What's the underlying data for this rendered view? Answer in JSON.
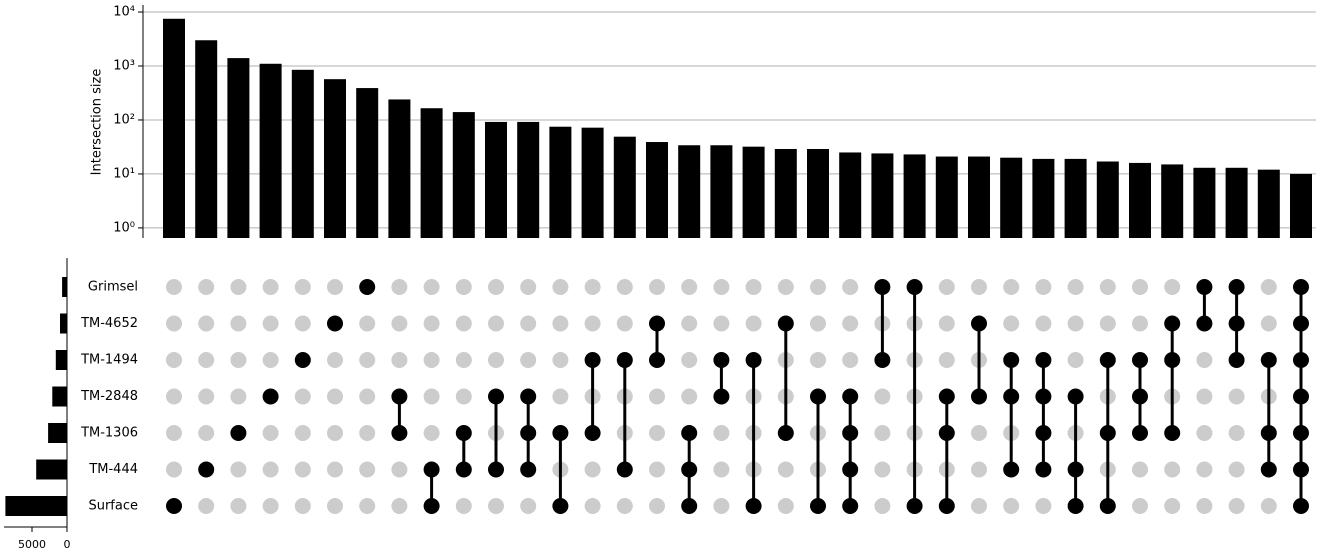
{
  "chart_data": {
    "type": "upset",
    "y_label": "Intersection size",
    "y_log": true,
    "ylim": [
      0.65,
      13500
    ],
    "yticks": [
      {
        "value": 1,
        "label": "10⁰"
      },
      {
        "value": 10,
        "label": "10¹"
      },
      {
        "value": 100,
        "label": "10²"
      },
      {
        "value": 1000,
        "label": "10³"
      },
      {
        "value": 10000,
        "label": "10⁴"
      }
    ],
    "grid": true,
    "color": "#000000",
    "sets": [
      "Grimsel",
      "TM-4652",
      "TM-1494",
      "TM-2848",
      "TM-1306",
      "TM-444",
      "Surface"
    ],
    "set_sizes": [
      700,
      1000,
      1600,
      2100,
      2700,
      4400,
      8800
    ],
    "set_size_xlim": [
      0,
      9000
    ],
    "set_size_xticks": [
      5000,
      0
    ],
    "values": [
      7500,
      3000,
      1400,
      1100,
      850,
      570,
      390,
      240,
      165,
      140,
      92,
      92,
      75,
      72,
      49,
      39,
      34,
      34,
      32,
      29,
      29,
      25,
      24,
      23,
      21,
      21,
      20,
      19,
      19,
      17,
      16,
      15,
      13,
      13,
      12,
      10
    ],
    "intersections": [
      [
        6
      ],
      [
        5
      ],
      [
        4
      ],
      [
        3
      ],
      [
        2
      ],
      [
        1
      ],
      [
        0
      ],
      [
        3,
        4
      ],
      [
        5,
        6
      ],
      [
        4,
        5
      ],
      [
        3,
        5
      ],
      [
        3,
        4,
        5
      ],
      [
        4,
        6
      ],
      [
        2,
        4
      ],
      [
        2,
        5
      ],
      [
        1,
        2
      ],
      [
        4,
        5,
        6
      ],
      [
        2,
        3
      ],
      [
        2,
        6
      ],
      [
        1,
        4
      ],
      [
        3,
        6
      ],
      [
        3,
        4,
        5,
        6
      ],
      [
        0,
        2
      ],
      [
        0,
        6
      ],
      [
        3,
        4,
        6
      ],
      [
        1,
        3
      ],
      [
        2,
        3,
        5
      ],
      [
        2,
        3,
        4,
        5
      ],
      [
        3,
        5,
        6
      ],
      [
        2,
        4,
        6
      ],
      [
        2,
        3,
        4
      ],
      [
        1,
        2,
        4
      ],
      [
        0,
        1
      ],
      [
        0,
        1,
        2
      ],
      [
        2,
        4,
        5
      ],
      [
        0,
        1,
        2,
        3,
        4,
        5,
        6
      ]
    ]
  }
}
